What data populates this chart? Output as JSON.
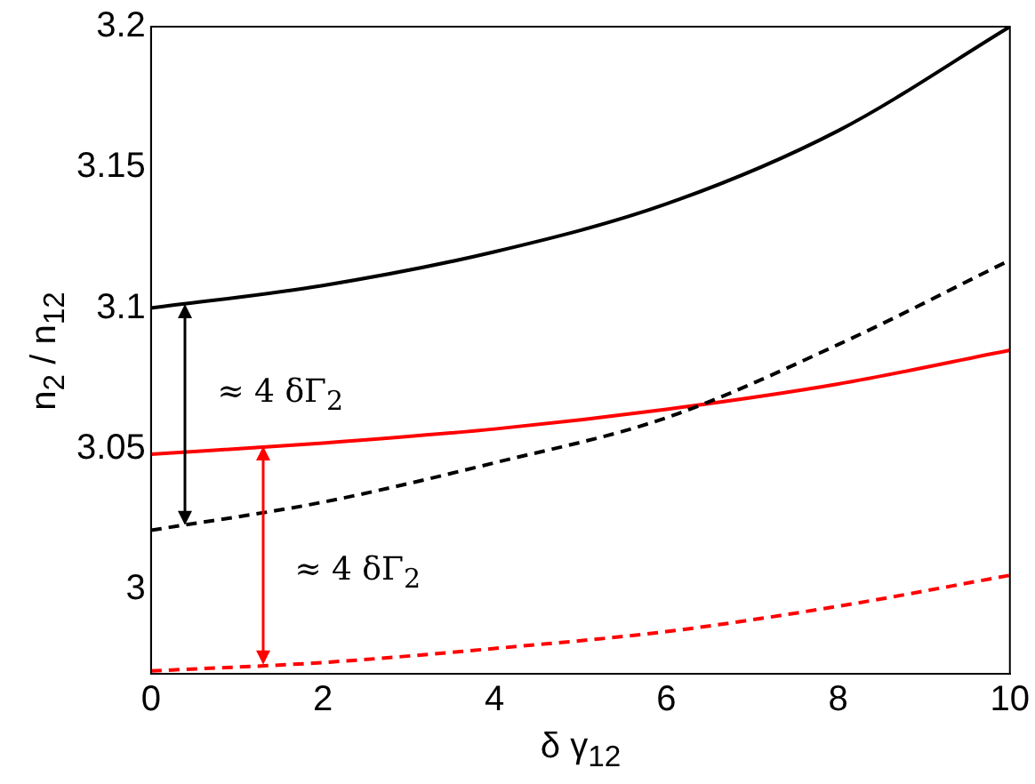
{
  "chart_data": {
    "type": "line",
    "xlabel": "δ γ$_{12}$",
    "ylabel": "n$_{2}$ / n$_{12}$",
    "x": [
      0,
      2,
      4,
      6,
      8,
      10
    ],
    "series": [
      {
        "color": "#000000",
        "line_style": "solid",
        "values": [
          3.1,
          3.108,
          3.12,
          3.137,
          3.163,
          3.2
        ]
      },
      {
        "color": "#000000",
        "line_style": "dashed",
        "values": [
          3.021,
          3.031,
          3.045,
          3.061,
          3.087,
          3.117
        ]
      },
      {
        "color": "#ff0000",
        "line_style": "solid",
        "values": [
          3.048,
          3.052,
          3.057,
          3.064,
          3.073,
          3.085
        ]
      },
      {
        "color": "#ff0000",
        "line_style": "dashed",
        "values": [
          2.971,
          2.974,
          2.979,
          2.985,
          2.994,
          3.005
        ]
      }
    ],
    "annotations": [
      "≈ 4 δΓ$_{2}$",
      "≈ 4 δΓ$_{2}$"
    ],
    "xlim": [
      0,
      10
    ],
    "ylim": [
      2.97,
      3.2
    ],
    "xticks": [
      0,
      2,
      4,
      6,
      8,
      10
    ],
    "yticks": [
      3,
      3.05,
      3.1,
      3.15,
      3.2
    ],
    "grid": false,
    "legend": false,
    "marker": "none"
  }
}
